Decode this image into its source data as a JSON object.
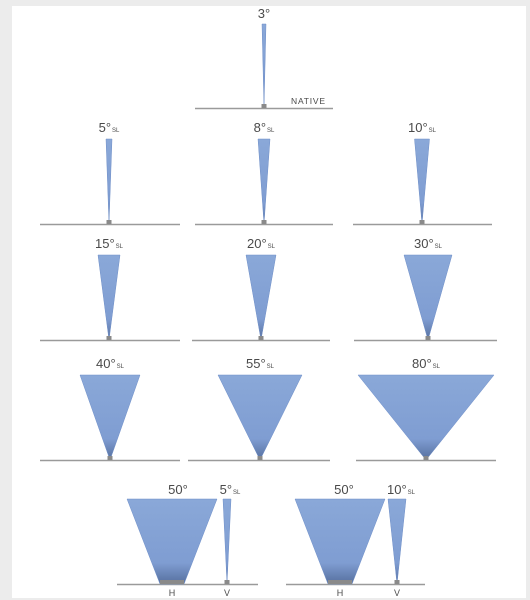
{
  "colors": {
    "beam_top": "#8aa8d8",
    "beam_bottom": "#5a7cb8",
    "beam_edge": "#6f8fc8",
    "ground": "#9a9a9a",
    "base": "#8a8a8a",
    "text": "#4a4a4a"
  },
  "native_label": "NATIVE",
  "sl_suffix": "SL",
  "beams": [
    {
      "id": "3",
      "angle": "3°",
      "sl": false,
      "native": true
    },
    {
      "id": "5",
      "angle": "5°",
      "sl": true
    },
    {
      "id": "8",
      "angle": "8°",
      "sl": true
    },
    {
      "id": "10",
      "angle": "10°",
      "sl": true
    },
    {
      "id": "15",
      "angle": "15°",
      "sl": true
    },
    {
      "id": "20",
      "angle": "20°",
      "sl": true
    },
    {
      "id": "30",
      "angle": "30°",
      "sl": true
    },
    {
      "id": "40",
      "angle": "40°",
      "sl": true
    },
    {
      "id": "55",
      "angle": "55°",
      "sl": true
    },
    {
      "id": "80",
      "angle": "80°",
      "sl": true
    }
  ],
  "combos": [
    {
      "id": "50x5",
      "h_angle": "50°",
      "v_angle": "5°",
      "h_label": "H",
      "v_label": "V"
    },
    {
      "id": "50x10",
      "h_angle": "50°",
      "v_angle": "10°",
      "h_label": "H",
      "v_label": "V"
    }
  ]
}
